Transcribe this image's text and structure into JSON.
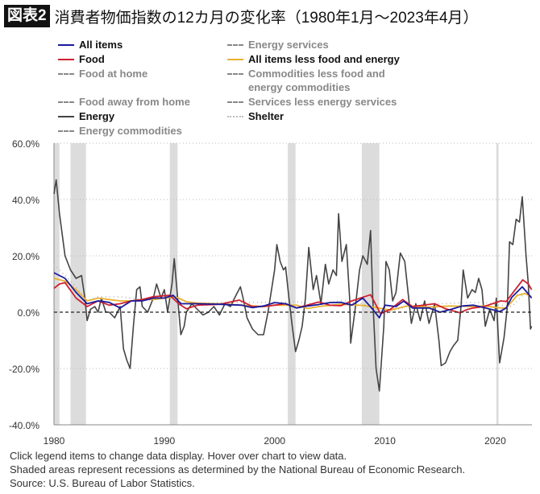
{
  "title": {
    "badge": "図表2",
    "text": "消費者物価指数の12カ月の変化率（1980年1月～2023年4月）"
  },
  "legend": [
    {
      "label": "All items",
      "color": "#1a1a9a",
      "style": "solid",
      "active": true
    },
    {
      "label": "Food",
      "color": "#d0202e",
      "style": "solid",
      "active": true
    },
    {
      "label": "Food at home",
      "color": "#888888",
      "style": "dashed",
      "active": false
    },
    {
      "label": "Food away from home",
      "color": "#888888",
      "style": "dashed",
      "active": false
    },
    {
      "label": "Energy",
      "color": "#444444",
      "style": "solid",
      "active": true
    },
    {
      "label": "Energy commodities",
      "color": "#888888",
      "style": "dashed",
      "active": false
    },
    {
      "label": "Energy services",
      "color": "#888888",
      "style": "dashed",
      "active": false
    },
    {
      "label": "All items less food and energy",
      "color": "#e8b030",
      "style": "solid",
      "active": true
    },
    {
      "label": "Commodities less food and energy commodities",
      "color": "#888888",
      "style": "dashed",
      "active": false
    },
    {
      "label": "Services less energy services",
      "color": "#888888",
      "style": "dashed",
      "active": false
    },
    {
      "label": "Shelter",
      "color": "#bbbbbb",
      "style": "dotted",
      "active": true
    }
  ],
  "chart_data": {
    "type": "line",
    "ylim": [
      -40,
      60
    ],
    "xlim": [
      1980,
      2023.33
    ],
    "yticks": [
      "60.0%",
      "40.0%",
      "20.0%",
      "0.0%",
      "-20.0%",
      "-40.0%"
    ],
    "ytick_values": [
      60,
      40,
      20,
      0,
      -20,
      -40
    ],
    "xticks": [
      "1980",
      "1990",
      "2000",
      "2010",
      "2020"
    ],
    "xtick_values": [
      1980,
      1990,
      2000,
      2010,
      2020
    ],
    "grid": "horizontal dotted",
    "recessions": [
      [
        1980.0,
        1980.5
      ],
      [
        1981.5,
        1982.9
      ],
      [
        1990.5,
        1991.2
      ],
      [
        2001.2,
        2001.9
      ],
      [
        2007.9,
        2009.5
      ],
      [
        2020.1,
        2020.3
      ]
    ],
    "series": [
      {
        "name": "Shelter",
        "color": "#bbbbbb",
        "style": "dotted",
        "points": [
          [
            1980,
            17
          ],
          [
            1981,
            13
          ],
          [
            1982,
            9
          ],
          [
            1983,
            4
          ],
          [
            1984,
            5.5
          ],
          [
            1986,
            5.5
          ],
          [
            1988,
            4.5
          ],
          [
            1990,
            5.5
          ],
          [
            1992,
            3
          ],
          [
            1995,
            3.5
          ],
          [
            2000,
            3.5
          ],
          [
            2002,
            3.7
          ],
          [
            2004,
            2.5
          ],
          [
            2006,
            4.2
          ],
          [
            2008,
            3
          ],
          [
            2010,
            -0.5
          ],
          [
            2012,
            2
          ],
          [
            2015,
            3
          ],
          [
            2017,
            3.3
          ],
          [
            2019,
            3.5
          ],
          [
            2020.5,
            2.4
          ],
          [
            2021.5,
            2
          ],
          [
            2023,
            8
          ],
          [
            2023.3,
            8
          ]
        ]
      },
      {
        "name": "Energy",
        "color": "#444444",
        "style": "solid",
        "points": [
          [
            1980,
            42
          ],
          [
            1980.2,
            47
          ],
          [
            1980.5,
            35
          ],
          [
            1981,
            20
          ],
          [
            1981.5,
            15
          ],
          [
            1982,
            12
          ],
          [
            1982.5,
            13
          ],
          [
            1982.8,
            5
          ],
          [
            1983,
            -3
          ],
          [
            1983.3,
            1
          ],
          [
            1983.7,
            2
          ],
          [
            1984,
            0
          ],
          [
            1984.3,
            5
          ],
          [
            1984.7,
            0
          ],
          [
            1985,
            0
          ],
          [
            1985.5,
            -2
          ],
          [
            1986,
            2
          ],
          [
            1986.3,
            -13
          ],
          [
            1986.6,
            -17
          ],
          [
            1986.9,
            -20
          ],
          [
            1987.2,
            -5
          ],
          [
            1987.5,
            8
          ],
          [
            1987.8,
            9
          ],
          [
            1988,
            2
          ],
          [
            1988.5,
            0
          ],
          [
            1989,
            5
          ],
          [
            1989.3,
            10
          ],
          [
            1989.7,
            5
          ],
          [
            1990,
            8
          ],
          [
            1990.3,
            0
          ],
          [
            1990.7,
            10
          ],
          [
            1990.9,
            19
          ],
          [
            1991.1,
            10
          ],
          [
            1991.5,
            -8
          ],
          [
            1991.8,
            -5
          ],
          [
            1992,
            0
          ],
          [
            1992.5,
            3
          ],
          [
            1993,
            1
          ],
          [
            1993.5,
            -1
          ],
          [
            1994,
            0
          ],
          [
            1994.5,
            2
          ],
          [
            1995,
            -1
          ],
          [
            1995.5,
            3
          ],
          [
            1996,
            2
          ],
          [
            1996.5,
            6
          ],
          [
            1996.9,
            9
          ],
          [
            1997.2,
            4
          ],
          [
            1997.5,
            -2
          ],
          [
            1998,
            -6
          ],
          [
            1998.5,
            -8
          ],
          [
            1999,
            -8
          ],
          [
            1999.4,
            0
          ],
          [
            1999.8,
            10
          ],
          [
            2000,
            15
          ],
          [
            2000.2,
            24
          ],
          [
            2000.5,
            18
          ],
          [
            2000.8,
            15
          ],
          [
            2001,
            16
          ],
          [
            2001.3,
            5
          ],
          [
            2001.6,
            -5
          ],
          [
            2001.9,
            -14
          ],
          [
            2002.2,
            -10
          ],
          [
            2002.5,
            -5
          ],
          [
            2002.8,
            5
          ],
          [
            2003.1,
            23
          ],
          [
            2003.5,
            8
          ],
          [
            2003.8,
            13
          ],
          [
            2004.2,
            3
          ],
          [
            2004.6,
            17
          ],
          [
            2004.9,
            10
          ],
          [
            2005.3,
            15
          ],
          [
            2005.6,
            13
          ],
          [
            2005.8,
            35
          ],
          [
            2006.1,
            18
          ],
          [
            2006.5,
            24
          ],
          [
            2006.8,
            5
          ],
          [
            2006.9,
            -11
          ],
          [
            2007.3,
            1
          ],
          [
            2007.7,
            15
          ],
          [
            2008,
            20
          ],
          [
            2008.4,
            17
          ],
          [
            2008.7,
            29
          ],
          [
            2008.9,
            5
          ],
          [
            2009.2,
            -20
          ],
          [
            2009.5,
            -28
          ],
          [
            2009.9,
            -5
          ],
          [
            2010.1,
            18
          ],
          [
            2010.4,
            15
          ],
          [
            2010.7,
            4
          ],
          [
            2011,
            7
          ],
          [
            2011.4,
            21
          ],
          [
            2011.8,
            18
          ],
          [
            2012.1,
            7
          ],
          [
            2012.4,
            -4
          ],
          [
            2012.8,
            3
          ],
          [
            2013.2,
            -3
          ],
          [
            2013.6,
            4
          ],
          [
            2014,
            -4
          ],
          [
            2014.5,
            3
          ],
          [
            2014.9,
            -10
          ],
          [
            2015.1,
            -19
          ],
          [
            2015.5,
            -18
          ],
          [
            2015.9,
            -14
          ],
          [
            2016.2,
            -12
          ],
          [
            2016.6,
            -10
          ],
          [
            2016.9,
            2
          ],
          [
            2017.1,
            15
          ],
          [
            2017.5,
            5
          ],
          [
            2017.9,
            8
          ],
          [
            2018.2,
            7
          ],
          [
            2018.5,
            12
          ],
          [
            2018.8,
            8
          ],
          [
            2019.1,
            -5
          ],
          [
            2019.5,
            1
          ],
          [
            2019.9,
            -3
          ],
          [
            2020.1,
            5
          ],
          [
            2020.4,
            -18
          ],
          [
            2020.8,
            -9
          ],
          [
            2021.1,
            2
          ],
          [
            2021.3,
            25
          ],
          [
            2021.6,
            24
          ],
          [
            2021.9,
            33
          ],
          [
            2022.2,
            32
          ],
          [
            2022.45,
            41
          ],
          [
            2022.8,
            20
          ],
          [
            2023,
            10
          ],
          [
            2023.2,
            -6
          ],
          [
            2023.3,
            -5
          ]
        ]
      },
      {
        "name": "All items less food and energy",
        "color": "#e8b030",
        "style": "solid",
        "points": [
          [
            1980,
            12
          ],
          [
            1981,
            11
          ],
          [
            1982,
            8
          ],
          [
            1983,
            4
          ],
          [
            1984,
            5
          ],
          [
            1985,
            4.5
          ],
          [
            1986,
            4
          ],
          [
            1987,
            4
          ],
          [
            1988,
            4.5
          ],
          [
            1989,
            4.5
          ],
          [
            1990,
            5
          ],
          [
            1991,
            5.5
          ],
          [
            1992,
            3.7
          ],
          [
            1993,
            3.2
          ],
          [
            1995,
            3
          ],
          [
            1997,
            2.5
          ],
          [
            1999,
            2
          ],
          [
            2000,
            2.5
          ],
          [
            2002,
            2.5
          ],
          [
            2003,
            1.3
          ],
          [
            2004,
            2
          ],
          [
            2006,
            2.8
          ],
          [
            2008,
            2.4
          ],
          [
            2009,
            1.8
          ],
          [
            2010.5,
            0.7
          ],
          [
            2012,
            2.2
          ],
          [
            2014,
            1.8
          ],
          [
            2016,
            2.2
          ],
          [
            2018,
            2
          ],
          [
            2019,
            2.2
          ],
          [
            2020.5,
            1.5
          ],
          [
            2021,
            1.5
          ],
          [
            2022,
            6
          ],
          [
            2022.7,
            6.6
          ],
          [
            2023.3,
            5.5
          ]
        ]
      },
      {
        "name": "Food",
        "color": "#d0202e",
        "style": "solid",
        "points": [
          [
            1980,
            8.5
          ],
          [
            1980.5,
            10
          ],
          [
            1981,
            10.5
          ],
          [
            1982,
            5
          ],
          [
            1983,
            2
          ],
          [
            1984,
            4
          ],
          [
            1985,
            2.5
          ],
          [
            1986,
            3
          ],
          [
            1987,
            4
          ],
          [
            1988,
            4.5
          ],
          [
            1989,
            5.5
          ],
          [
            1990.5,
            6
          ],
          [
            1991.3,
            3
          ],
          [
            1992,
            1.2
          ],
          [
            1993,
            2.5
          ],
          [
            1995,
            2.8
          ],
          [
            1996.8,
            4.3
          ],
          [
            1998,
            2
          ],
          [
            1999,
            2
          ],
          [
            2000,
            2.5
          ],
          [
            2001,
            3
          ],
          [
            2002,
            1.5
          ],
          [
            2004,
            3.6
          ],
          [
            2005,
            2.5
          ],
          [
            2006,
            2.3
          ],
          [
            2007,
            4
          ],
          [
            2008.7,
            6.2
          ],
          [
            2009.6,
            -0.5
          ],
          [
            2010.5,
            1
          ],
          [
            2011.6,
            4.5
          ],
          [
            2012.5,
            2
          ],
          [
            2014.5,
            3
          ],
          [
            2015.5,
            1.2
          ],
          [
            2016.8,
            -0.2
          ],
          [
            2017.5,
            1
          ],
          [
            2018,
            1.5
          ],
          [
            2019,
            2
          ],
          [
            2020.5,
            4
          ],
          [
            2021,
            3.8
          ],
          [
            2022.5,
            11.5
          ],
          [
            2023,
            10
          ],
          [
            2023.3,
            8
          ]
        ]
      },
      {
        "name": "All items",
        "color": "#1a1a9a",
        "style": "solid",
        "points": [
          [
            1980,
            14
          ],
          [
            1981,
            12
          ],
          [
            1982,
            7
          ],
          [
            1983,
            3
          ],
          [
            1984,
            4
          ],
          [
            1985,
            3.5
          ],
          [
            1986,
            1.5
          ],
          [
            1987,
            4
          ],
          [
            1988,
            4
          ],
          [
            1989,
            5
          ],
          [
            1990,
            5
          ],
          [
            1990.8,
            6
          ],
          [
            1991.5,
            3
          ],
          [
            1992,
            3
          ],
          [
            1993,
            3
          ],
          [
            1995,
            2.8
          ],
          [
            1997,
            2.5
          ],
          [
            1998,
            1.6
          ],
          [
            1999,
            2.2
          ],
          [
            2000,
            3.4
          ],
          [
            2001,
            3
          ],
          [
            2002,
            1.5
          ],
          [
            2003,
            2.2
          ],
          [
            2004,
            2.7
          ],
          [
            2005,
            3.4
          ],
          [
            2006,
            3.5
          ],
          [
            2007,
            2.5
          ],
          [
            2008,
            5
          ],
          [
            2008.9,
            1
          ],
          [
            2009.5,
            -2
          ],
          [
            2010,
            2.5
          ],
          [
            2011,
            2
          ],
          [
            2011.7,
            3.9
          ],
          [
            2012.5,
            1.5
          ],
          [
            2014,
            1.5
          ],
          [
            2015,
            0
          ],
          [
            2016,
            1
          ],
          [
            2017,
            2.2
          ],
          [
            2018,
            2.5
          ],
          [
            2019,
            1.6
          ],
          [
            2020.4,
            0.2
          ],
          [
            2021,
            1.5
          ],
          [
            2021.5,
            5.3
          ],
          [
            2022.45,
            9
          ],
          [
            2023,
            6.5
          ],
          [
            2023.3,
            5
          ]
        ]
      }
    ]
  },
  "footnotes": [
    "Click legend items to change data display. Hover over chart to view data.",
    "Shaded areas represent recessions as determined by the National Bureau of Economic Research.",
    "Source: U.S. Bureau of Labor Statistics."
  ]
}
